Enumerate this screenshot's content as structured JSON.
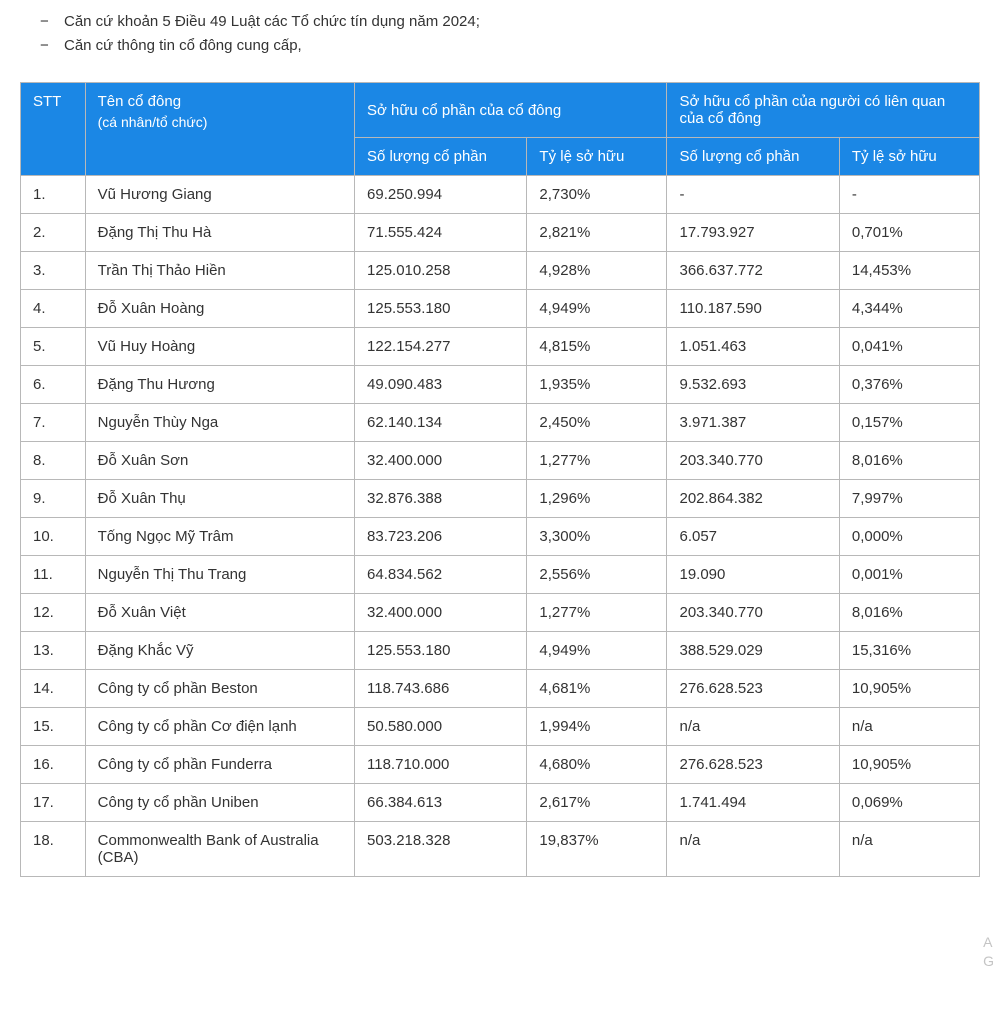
{
  "intro": {
    "items": [
      "Căn cứ khoản 5 Điều 49 Luật các Tổ chức tín dụng năm 2024;",
      "Căn cứ thông tin cổ đông cung cấp,"
    ]
  },
  "table": {
    "header": {
      "stt": "STT",
      "name_main": "Tên cổ đông",
      "name_sub": "(cá nhân/tổ chức)",
      "own_group": "Sở hữu cổ phần của cổ đông",
      "related_group": "Sở hữu cổ phần của người có liên quan của cổ đông",
      "qty": "Số lượng cổ phần",
      "pct": "Tỷ lệ sở hữu"
    },
    "rows": [
      {
        "stt": "1.",
        "name": "Vũ Hương Giang",
        "own_qty": "69.250.994",
        "own_pct": "2,730%",
        "rel_qty": "-",
        "rel_pct": "-"
      },
      {
        "stt": "2.",
        "name": "Đặng Thị Thu Hà",
        "own_qty": "71.555.424",
        "own_pct": "2,821%",
        "rel_qty": "17.793.927",
        "rel_pct": "0,701%"
      },
      {
        "stt": "3.",
        "name": "Trần Thị Thảo Hiền",
        "own_qty": "125.010.258",
        "own_pct": "4,928%",
        "rel_qty": "366.637.772",
        "rel_pct": "14,453%"
      },
      {
        "stt": "4.",
        "name": "Đỗ Xuân Hoàng",
        "own_qty": "125.553.180",
        "own_pct": "4,949%",
        "rel_qty": "110.187.590",
        "rel_pct": "4,344%"
      },
      {
        "stt": "5.",
        "name": "Vũ Huy Hoàng",
        "own_qty": "122.154.277",
        "own_pct": "4,815%",
        "rel_qty": "1.051.463",
        "rel_pct": "0,041%"
      },
      {
        "stt": "6.",
        "name": "Đặng Thu Hương",
        "own_qty": "49.090.483",
        "own_pct": "1,935%",
        "rel_qty": "9.532.693",
        "rel_pct": "0,376%"
      },
      {
        "stt": "7.",
        "name": "Nguyễn Thùy Nga",
        "own_qty": "62.140.134",
        "own_pct": "2,450%",
        "rel_qty": "3.971.387",
        "rel_pct": "0,157%"
      },
      {
        "stt": "8.",
        "name": "Đỗ Xuân Sơn",
        "own_qty": "32.400.000",
        "own_pct": "1,277%",
        "rel_qty": "203.340.770",
        "rel_pct": "8,016%"
      },
      {
        "stt": "9.",
        "name": "Đỗ Xuân Thụ",
        "own_qty": "32.876.388",
        "own_pct": "1,296%",
        "rel_qty": "202.864.382",
        "rel_pct": "7,997%"
      },
      {
        "stt": "10.",
        "name": "Tống Ngọc Mỹ Trâm",
        "own_qty": "83.723.206",
        "own_pct": "3,300%",
        "rel_qty": "6.057",
        "rel_pct": "0,000%"
      },
      {
        "stt": "11.",
        "name": "Nguyễn Thị Thu Trang",
        "own_qty": "64.834.562",
        "own_pct": "2,556%",
        "rel_qty": "19.090",
        "rel_pct": "0,001%"
      },
      {
        "stt": "12.",
        "name": "Đỗ Xuân Việt",
        "own_qty": "32.400.000",
        "own_pct": "1,277%",
        "rel_qty": "203.340.770",
        "rel_pct": "8,016%"
      },
      {
        "stt": "13.",
        "name": "Đặng Khắc Vỹ",
        "own_qty": "125.553.180",
        "own_pct": "4,949%",
        "rel_qty": "388.529.029",
        "rel_pct": "15,316%"
      },
      {
        "stt": "14.",
        "name": "Công ty cổ phần Beston",
        "own_qty": "118.743.686",
        "own_pct": "4,681%",
        "rel_qty": "276.628.523",
        "rel_pct": "10,905%"
      },
      {
        "stt": "15.",
        "name": "Công ty cổ phần Cơ điện lạnh",
        "own_qty": "50.580.000",
        "own_pct": "1,994%",
        "rel_qty": "n/a",
        "rel_pct": "n/a"
      },
      {
        "stt": "16.",
        "name": "Công ty cổ phần Funderra",
        "own_qty": "118.710.000",
        "own_pct": "4,680%",
        "rel_qty": "276.628.523",
        "rel_pct": "10,905%"
      },
      {
        "stt": "17.",
        "name": "Công ty cổ phần Uniben",
        "own_qty": "66.384.613",
        "own_pct": "2,617%",
        "rel_qty": "1.741.494",
        "rel_pct": "0,069%"
      },
      {
        "stt": "18.",
        "name": "Commonwealth Bank of Australia (CBA)",
        "own_qty": "503.218.328",
        "own_pct": "19,837%",
        "rel_qty": "n/a",
        "rel_pct": "n/a"
      }
    ],
    "style": {
      "header_bg": "#1b87e5",
      "header_color": "#ffffff",
      "border_color": "#b8b8b8",
      "text_color": "#333333",
      "font_size": 15
    }
  },
  "watermark": {
    "line1": "A",
    "line2": "G"
  }
}
